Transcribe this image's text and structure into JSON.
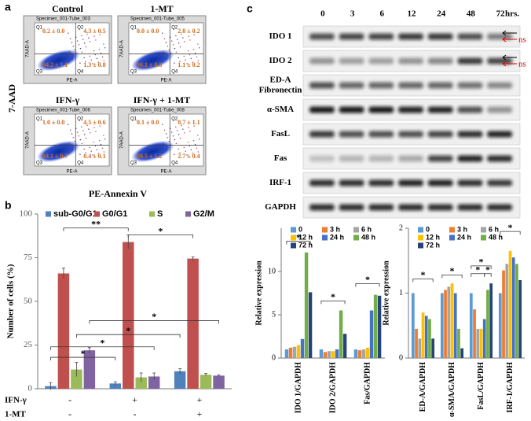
{
  "panel_a": {
    "letter": "a",
    "y_label": "7-AAD",
    "x_label": "PE-Annexin V",
    "plots": [
      {
        "title": "Control",
        "specimen": "Specimen_001-Tube_003",
        "q1": "0.2 ± 0.0",
        "q2": "4.3 ± 0.5",
        "q3": "94.2 ± 1.1",
        "q4": "1.3 ± 0.8"
      },
      {
        "title": "1-MT",
        "specimen": "Specimen_001-Tube_005",
        "q1": "0.0 ± 0.0",
        "q2": "2.8 ± 0.2",
        "q3": "96.1 ± 0.8",
        "q4": "1.1 ± 0.2"
      },
      {
        "title": "IFN-γ",
        "specimen": "Specimen_001-Tube_006",
        "q1": "1.0 ± 0.0",
        "q2": "4.5 ± 0.6",
        "q3": "94.1 ± 0.7",
        "q4": "0.4 ± 0.1"
      },
      {
        "title": "IFN-γ + 1-MT",
        "specimen": "Specimen_001-Tube_008",
        "q1": "0.1 ± 0.0",
        "q2": "8.7 ± 1.1",
        "q3": "88.5 ± 1.2",
        "q4": "2.7 ± 0.4"
      }
    ],
    "quadrants": [
      "Q1",
      "Q2",
      "Q3",
      "Q4"
    ],
    "mini_x": "PE-A",
    "mini_y": "7AAD-A"
  },
  "panel_b": {
    "letter": "b",
    "rows": [
      {
        "label": "IFN-γ",
        "signs": [
          "-",
          "+",
          "+"
        ]
      },
      {
        "label": "1-MT",
        "signs": [
          "-",
          "-",
          "+"
        ]
      }
    ]
  },
  "panel_c": {
    "letter": "c",
    "times": [
      "0",
      "3",
      "6",
      "12",
      "24",
      "48",
      "72"
    ],
    "unit": "hrs.",
    "rows": [
      "IDO 1",
      "IDO 2",
      [
        "ED-A",
        "Fibronectin"
      ],
      "α-SMA",
      "FasL",
      "Fas",
      "IRF-1",
      "GAPDH"
    ],
    "ns": [
      "ns",
      "ns"
    ]
  },
  "chart_data": [
    {
      "type": "bar",
      "y_label": "Number of cells (%)",
      "categories": [
        null,
        null,
        null
      ],
      "series": [
        {
          "name": "sub-G0/G1",
          "color": "#4f81bd",
          "values": [
            1.5,
            3,
            10
          ],
          "errors": [
            2,
            1,
            1.5
          ]
        },
        {
          "name": "G0/G1",
          "color": "#c0504d",
          "values": [
            66,
            84,
            74.5
          ],
          "errors": [
            3,
            4,
            1
          ]
        },
        {
          "name": "S",
          "color": "#9bbb59",
          "values": [
            11,
            6.5,
            8
          ],
          "errors": [
            4,
            2.5,
            0.7
          ]
        },
        {
          "name": "G2/M",
          "color": "#8064a2",
          "values": [
            22,
            7,
            7.5
          ],
          "errors": [
            1.5,
            2,
            0.5
          ]
        }
      ],
      "ylim": [
        0,
        100
      ],
      "yticks": [
        0,
        25,
        50,
        75,
        100
      ],
      "legend": "top",
      "annotations": [
        "**",
        "*",
        "*",
        "*",
        "*",
        "*"
      ]
    },
    {
      "type": "bar",
      "y_label": "Relative expression",
      "categories": [
        "IDO 1/GAPDH",
        "IDO 2/GAPDH",
        "Fas/GAPDH"
      ],
      "series": [
        {
          "name": "0",
          "color": "#5b9bd5",
          "values": [
            1,
            1,
            1
          ]
        },
        {
          "name": "3 h",
          "color": "#ed7d31",
          "values": [
            1.2,
            0.7,
            0.9
          ]
        },
        {
          "name": "6 h",
          "color": "#a5a5a5",
          "values": [
            1.3,
            0.8,
            1
          ]
        },
        {
          "name": "12 h",
          "color": "#ffc000",
          "values": [
            1.5,
            0.8,
            1.2
          ]
        },
        {
          "name": "24 h",
          "color": "#4472c4",
          "values": [
            2.2,
            1,
            5.5
          ]
        },
        {
          "name": "48 h",
          "color": "#70ad47",
          "values": [
            12.2,
            5.5,
            7.3
          ]
        },
        {
          "name": "72 h",
          "color": "#264478",
          "values": [
            7.6,
            2.8,
            7.2
          ]
        }
      ],
      "ylim": [
        0,
        15
      ],
      "yticks": [
        0,
        5,
        10
      ],
      "legend": "upper left",
      "annotations": [
        "*",
        "*",
        "*"
      ]
    },
    {
      "type": "bar",
      "y_label": "Relative expression",
      "categories": [
        "ED-A/GAPDH",
        "α-SMA/GAPDH",
        "FasL/GAPDH",
        "IRF-1/GAPDH"
      ],
      "series": [
        {
          "name": "0",
          "color": "#5b9bd5",
          "values": [
            1,
            1,
            1,
            1
          ]
        },
        {
          "name": "3 h",
          "color": "#ed7d31",
          "values": [
            0.45,
            1.05,
            0.75,
            1.35
          ]
        },
        {
          "name": "6 h",
          "color": "#a5a5a5",
          "values": [
            0.3,
            1.1,
            0.45,
            1.45
          ]
        },
        {
          "name": "12 h",
          "color": "#ffc000",
          "values": [
            0.7,
            1.15,
            0.45,
            1.65
          ]
        },
        {
          "name": "24 h",
          "color": "#4472c4",
          "values": [
            0.65,
            1,
            0.6,
            1.55
          ]
        },
        {
          "name": "48 h",
          "color": "#70ad47",
          "values": [
            0.6,
            0.45,
            1.05,
            1.45
          ]
        },
        {
          "name": "72 h",
          "color": "#264478",
          "values": [
            0.3,
            0.15,
            1.15,
            1.2
          ]
        }
      ],
      "ylim": [
        0,
        2
      ],
      "yticks": [
        0,
        1,
        2
      ],
      "legend": "upper left",
      "annotations": [
        "*",
        "*",
        "*",
        "*",
        "*",
        "*"
      ]
    }
  ]
}
